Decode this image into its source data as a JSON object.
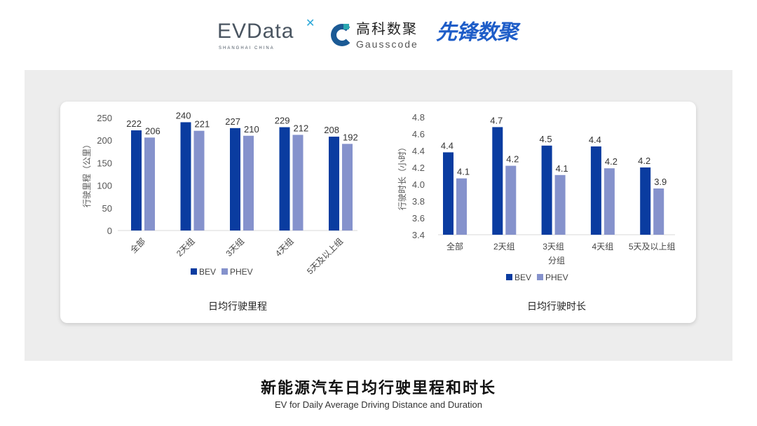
{
  "logos": {
    "evdata": "EVData",
    "evdata_sub": "SHANGHAI CHINA",
    "gauss_cn": "高科数聚",
    "gauss_en": "Gausscode",
    "xianfeng": "先锋数聚"
  },
  "colors": {
    "BEV": "#0a3ca0",
    "PHEV": "#8592cc",
    "panel": "#ededed"
  },
  "chart_data": [
    {
      "type": "bar",
      "title": "日均行驶里程",
      "ylabel": "行驶里程（公里）",
      "xlabel": "",
      "ylim": [
        0,
        250
      ],
      "yticks": [
        0,
        50,
        100,
        150,
        200,
        250
      ],
      "categories": [
        "全部",
        "2天组",
        "3天组",
        "4天组",
        "5天及以上组"
      ],
      "series": [
        {
          "name": "BEV",
          "values": [
            222,
            240,
            227,
            229,
            208
          ],
          "labels": [
            "222",
            "240",
            "227",
            "229",
            "208"
          ]
        },
        {
          "name": "PHEV",
          "values": [
            206,
            221,
            210,
            212,
            192
          ],
          "labels": [
            "206",
            "221",
            "210",
            "212",
            "192"
          ]
        }
      ],
      "legend": "bottom",
      "grid": false
    },
    {
      "type": "bar",
      "title": "日均行驶时长",
      "ylabel": "行驶时长（小时）",
      "xlabel": "分组",
      "ylim": [
        3.4,
        4.8
      ],
      "yticks": [
        "3.4",
        "3.6",
        "3.8",
        "4.0",
        "4.2",
        "4.4",
        "4.6",
        "4.8"
      ],
      "categories": [
        "全部",
        "2天组",
        "3天组",
        "4天组",
        "5天及以上组"
      ],
      "series": [
        {
          "name": "BEV",
          "values": [
            4.38,
            4.68,
            4.46,
            4.45,
            4.2
          ],
          "labels": [
            "4.4",
            "4.7",
            "4.5",
            "4.4",
            "4.2"
          ]
        },
        {
          "name": "PHEV",
          "values": [
            4.07,
            4.22,
            4.11,
            4.19,
            3.95
          ],
          "labels": [
            "4.1",
            "4.2",
            "4.1",
            "4.2",
            "3.9"
          ]
        }
      ],
      "legend": "bottom",
      "grid": false
    }
  ],
  "footer": {
    "title_cn": "新能源汽车日均行驶里程和时长",
    "title_en": "EV for Daily Average Driving Distance and Duration"
  }
}
